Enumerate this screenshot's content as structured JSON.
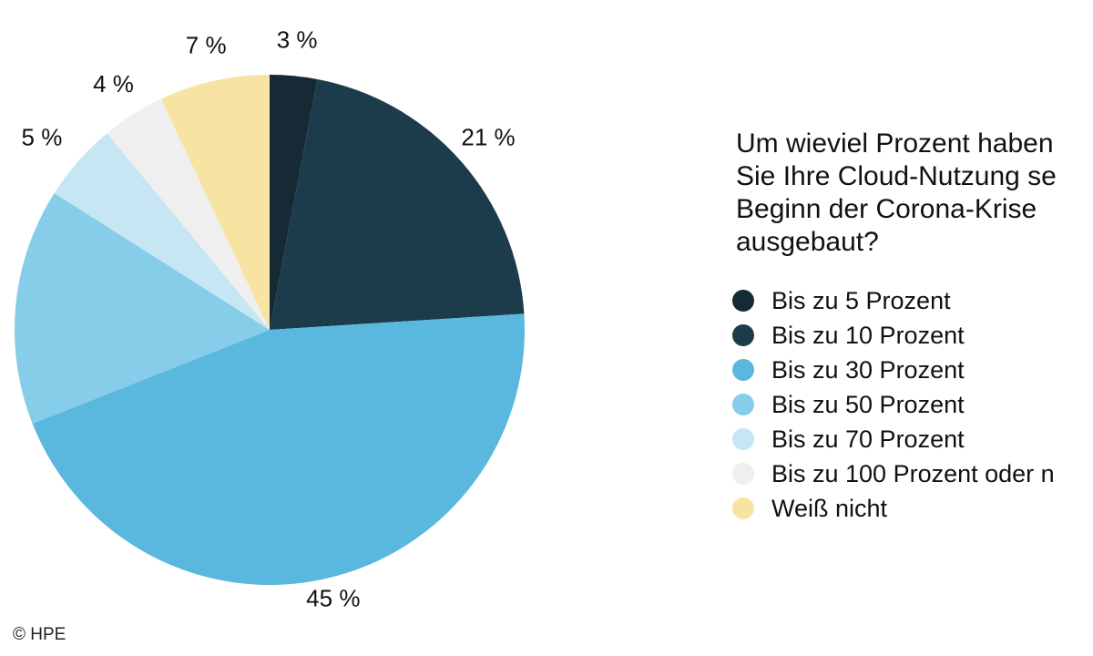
{
  "chart_data": {
    "type": "pie",
    "title": "Um wieviel Prozent haben\nSie Ihre Cloud-Nutzung se\nBeginn der Corona-Krise\nausgebaut?",
    "slices": [
      {
        "label": "Bis zu 5 Prozent",
        "value": 3,
        "value_label": "3 %",
        "color": "#152a35"
      },
      {
        "label": "Bis zu 10 Prozent",
        "value": 21,
        "value_label": "21 %",
        "color": "#1c3c4c"
      },
      {
        "label": "Bis zu 30 Prozent",
        "value": 45,
        "value_label": "45 %",
        "color": "#5ab8df"
      },
      {
        "label": "Bis zu 50 Prozent",
        "value": 15,
        "value_label": "%",
        "color": "#85cde8"
      },
      {
        "label": "Bis zu 70 Prozent",
        "value": 5,
        "value_label": "5 %",
        "color": "#c6e6f3"
      },
      {
        "label": "Bis zu 100 Prozent oder n",
        "value": 4,
        "value_label": "4 %",
        "color": "#efefef"
      },
      {
        "label": "Weiß nicht",
        "value": 7,
        "value_label": "7 %",
        "color": "#f8e4a2"
      }
    ],
    "start_angle": "12 o'clock",
    "direction": "clockwise",
    "legend": "right"
  },
  "credit": "© HPE"
}
